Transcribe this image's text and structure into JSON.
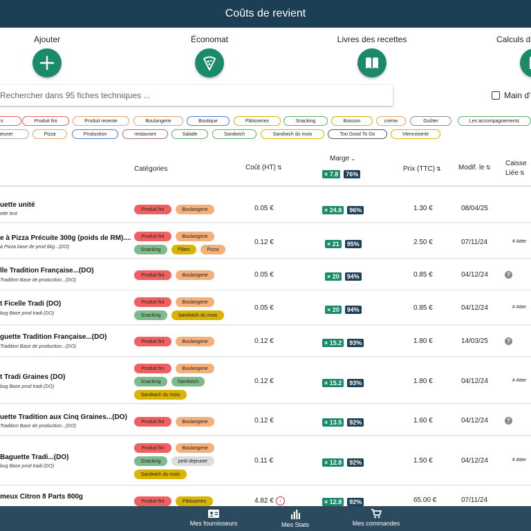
{
  "header": {
    "title": "Coûts de revient"
  },
  "actions": [
    {
      "label": "Ajouter",
      "icon": "plus-icon"
    },
    {
      "label": "Économat",
      "icon": "pizza-icon"
    },
    {
      "label": "Livres des recettes",
      "icon": "book-icon"
    },
    {
      "label": "Calculs de",
      "icon": "calculator-icon"
    }
  ],
  "search": {
    "placeholder": "Rechercher dans 95 fiches techniques ..."
  },
  "main_checkbox": {
    "label": "Main d'o"
  },
  "filter_chips": [
    {
      "label": "ni",
      "color": "#e85a5a"
    },
    {
      "label": "Produit fini",
      "color": "#e85a5a"
    },
    {
      "label": "Produit revente",
      "color": "#e8a06a"
    },
    {
      "label": "Boulangerie",
      "color": "#e8a06a"
    },
    {
      "label": "Boutique",
      "color": "#4a7bd6"
    },
    {
      "label": "Pâtisseries",
      "color": "#d6b200"
    },
    {
      "label": "Snacking",
      "color": "#5aaa6a"
    },
    {
      "label": "Boisson",
      "color": "#d6b200"
    },
    {
      "label": "crème",
      "color": "#e8a06a"
    },
    {
      "label": "Goûter",
      "color": "#8a8a8a"
    },
    {
      "label": "Les accompagnements",
      "color": "#5aaa6a"
    },
    {
      "label": "ejeuner",
      "color": "#aaaaaa"
    },
    {
      "label": "Pizza",
      "color": "#e8a06a"
    },
    {
      "label": "Production",
      "color": "#4a7bd6"
    },
    {
      "label": "restaurant",
      "color": "#a06a8a"
    },
    {
      "label": "Salade",
      "color": "#5aaa6a"
    },
    {
      "label": "Sandwich",
      "color": "#5aaa6a"
    },
    {
      "label": "Sandwich du mois",
      "color": "#d6b200"
    },
    {
      "label": "Too Good To Go",
      "color": "#555555"
    },
    {
      "label": "Viennoiserie",
      "color": "#d6b200"
    }
  ],
  "table": {
    "headers": {
      "categories": "Catégories",
      "cout": "Coût (HT)",
      "marge": "Marge",
      "marge_mult": "× 7.8",
      "marge_pct": "76%",
      "prix": "Prix (TTC)",
      "modif": "Modif. le",
      "caisse_1": "Caisse",
      "caisse_2": "Liée"
    },
    "rows": [
      {
        "name": "uette unité",
        "sub": "ette test",
        "tags": [
          [
            "Produit fini",
            "#f06060"
          ],
          [
            "Boulangerie",
            "#f3b07a"
          ]
        ],
        "cost": "0.05 €",
        "mult": "× 24.8",
        "pct": "96%",
        "price": "1.30 €",
        "date": "08/04/25",
        "caisse": ""
      },
      {
        "name": "e à Pizza Précuite 300g (poids de RM)....",
        "sub": "à Pizza base de prod 6kg...(DO)",
        "tags": [
          [
            "Produit fini",
            "#f06060"
          ],
          [
            "Boulangerie",
            "#f3b07a"
          ],
          [
            "Snacking",
            "#7dbb8a"
          ],
          [
            "Pâtes",
            "#d9b400"
          ],
          [
            "Pizza",
            "#f3b07a"
          ]
        ],
        "cost": "0.12 €",
        "mult": "× 21",
        "pct": "95%",
        "price": "2.50 €",
        "date": "07/11/24",
        "caisse": "# Atter"
      },
      {
        "name": "lle Tradition Française...(DO)",
        "sub": "Tradition Base de production...(DO)",
        "tags": [
          [
            "Produit fini",
            "#f06060"
          ],
          [
            "Boulangerie",
            "#f3b07a"
          ]
        ],
        "cost": "0.05 €",
        "mult": "× 20",
        "pct": "94%",
        "price": "0.85 €",
        "date": "04/12/24",
        "caisse": "?"
      },
      {
        "name": "t Ficelle Tradi (DO)",
        "sub": "bug Base prod tradi (DO)",
        "tags": [
          [
            "Produit fini",
            "#f06060"
          ],
          [
            "Boulangerie",
            "#f3b07a"
          ],
          [
            "Snacking",
            "#7dbb8a"
          ],
          [
            "Sandwich du mois",
            "#d9b400"
          ]
        ],
        "cost": "0.05 €",
        "mult": "× 20",
        "pct": "94%",
        "price": "0.85 €",
        "date": "04/12/24",
        "caisse": "# Atter"
      },
      {
        "name": "guette Tradition Française...(DO)",
        "sub": "Tradition Base de production...(DO)",
        "tags": [
          [
            "Produit fini",
            "#f06060"
          ],
          [
            "Boulangerie",
            "#f3b07a"
          ]
        ],
        "cost": "0.12 €",
        "mult": "× 15.2",
        "pct": "93%",
        "price": "1.80 €",
        "date": "14/03/25",
        "caisse": "?"
      },
      {
        "name": "t Tradi Graines (DO)",
        "sub": "bug Base prod tradi (DO)",
        "tags": [
          [
            "Produit fini",
            "#f06060"
          ],
          [
            "Boulangerie",
            "#f3b07a"
          ],
          [
            "Snacking",
            "#7dbb8a"
          ],
          [
            "Sandwich",
            "#7dbb8a"
          ],
          [
            "Sandwich du mois",
            "#d9b400"
          ]
        ],
        "cost": "0.12 €",
        "mult": "× 15.2",
        "pct": "93%",
        "price": "1.80 €",
        "date": "04/12/24",
        "caisse": "# Atter"
      },
      {
        "name": "uette Tradition aux Cinq Graines...(DO)",
        "sub": "Tradition Base de production...(DO)",
        "tags": [
          [
            "Produit fini",
            "#f06060"
          ],
          [
            "Boulangerie",
            "#f3b07a"
          ]
        ],
        "cost": "0.12 €",
        "mult": "× 13.5",
        "pct": "92%",
        "price": "1.60 €",
        "date": "04/12/24",
        "caisse": "?"
      },
      {
        "name": " Baguette Tradi...(DO)",
        "sub": "bug Base prod tradi (DO)",
        "tags": [
          [
            "Produit fini",
            "#f06060"
          ],
          [
            "Boulangerie",
            "#f3b07a"
          ],
          [
            "Snacking",
            "#7dbb8a"
          ],
          [
            "petit dejeuner",
            "#dddddd"
          ],
          [
            "Sandwich du mois",
            "#d9b400"
          ]
        ],
        "cost": "0.11 €",
        "mult": "× 12.8",
        "pct": "92%",
        "price": "1.50 €",
        "date": "04/12/24",
        "caisse": "# Atter"
      },
      {
        "name": "meux Citron 8 Parts 800g",
        "sub": "",
        "tags": [
          [
            "Produit fini",
            "#f06060"
          ],
          [
            "Pâtisseries",
            "#d9b400"
          ]
        ],
        "cost": "4.82 €",
        "mult": "× 12.8",
        "pct": "92%",
        "price": "65.00 €",
        "date": "07/11/24",
        "caisse": ""
      }
    ]
  },
  "bottom_nav": [
    {
      "label": "Mes fournisseurs",
      "icon": "contacts-icon"
    },
    {
      "label": "Mes Stats",
      "icon": "chart-icon"
    },
    {
      "label": "Mes commandes",
      "icon": "cart-icon"
    }
  ]
}
